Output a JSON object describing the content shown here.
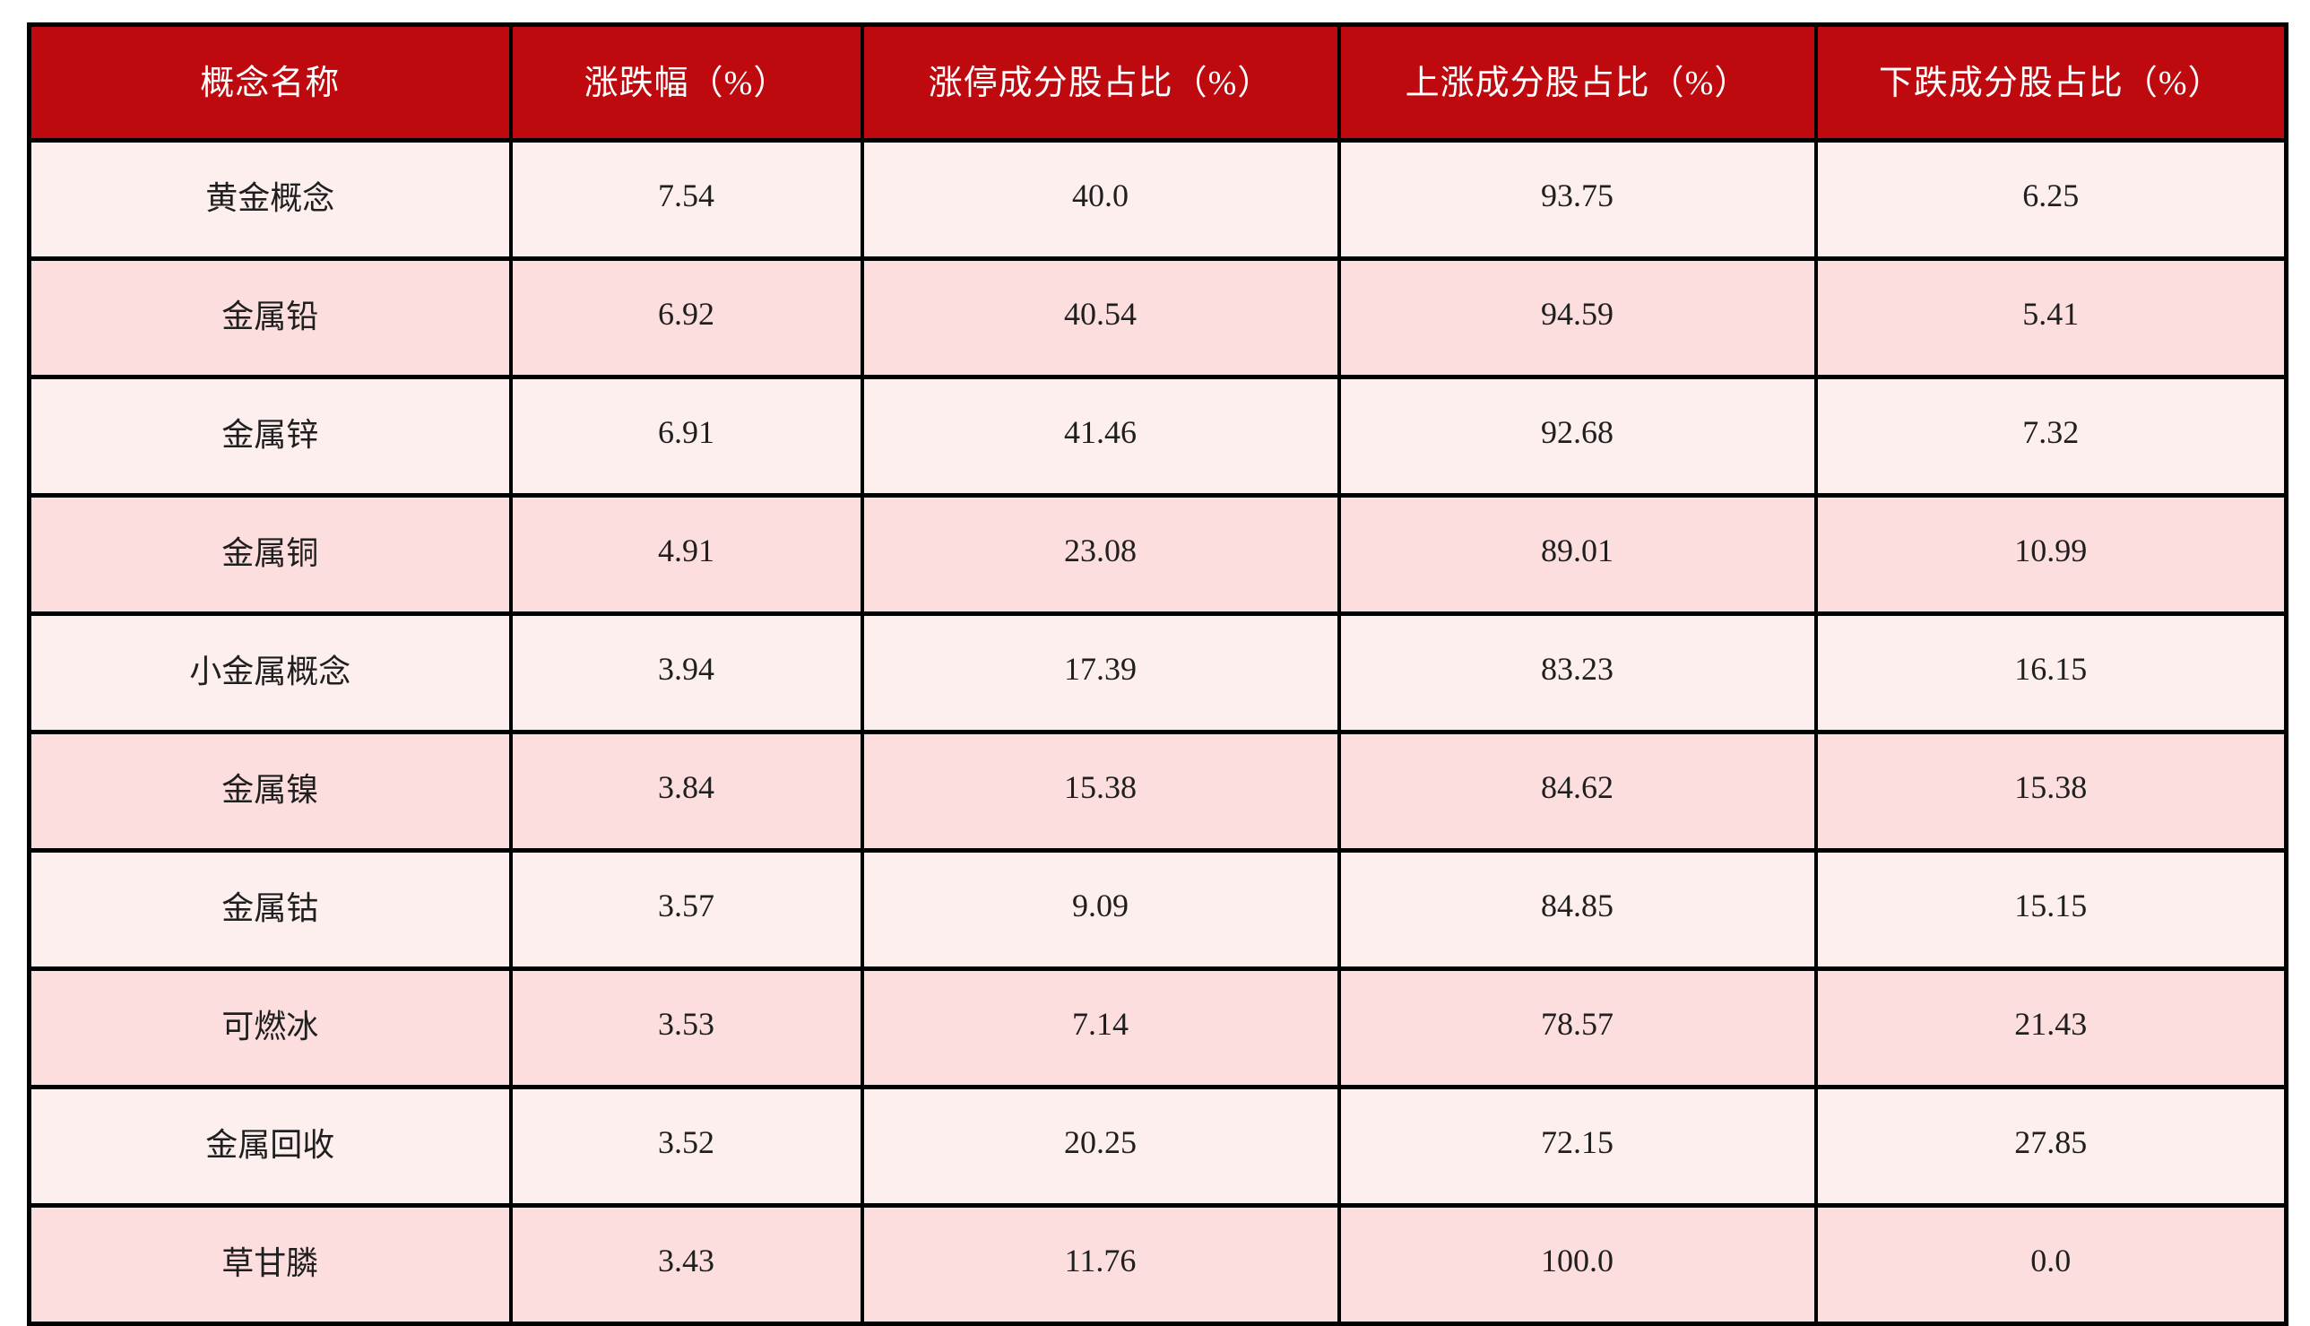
{
  "chart_data": {
    "type": "table",
    "columns": [
      "概念名称",
      "涨跌幅（%）",
      "涨停成分股占比（%）",
      "上涨成分股占比（%）",
      "下跌成分股占比（%）"
    ],
    "rows": [
      [
        "黄金概念",
        "7.54",
        "40.0",
        "93.75",
        "6.25"
      ],
      [
        "金属铅",
        "6.92",
        "40.54",
        "94.59",
        "5.41"
      ],
      [
        "金属锌",
        "6.91",
        "41.46",
        "92.68",
        "7.32"
      ],
      [
        "金属铜",
        "4.91",
        "23.08",
        "89.01",
        "10.99"
      ],
      [
        "小金属概念",
        "3.94",
        "17.39",
        "83.23",
        "16.15"
      ],
      [
        "金属镍",
        "3.84",
        "15.38",
        "84.62",
        "15.38"
      ],
      [
        "金属钴",
        "3.57",
        "9.09",
        "84.85",
        "15.15"
      ],
      [
        "可燃冰",
        "3.53",
        "7.14",
        "78.57",
        "21.43"
      ],
      [
        "金属回收",
        "3.52",
        "20.25",
        "72.15",
        "27.85"
      ],
      [
        "草甘膦",
        "3.43",
        "11.76",
        "100.0",
        "0.0"
      ]
    ],
    "layout": {
      "header_position": "top",
      "gridlines": "on",
      "row_striping": "alternating-pink"
    },
    "colors": {
      "header_background": "#be0a0f",
      "header_text": "#ffffff",
      "row_odd_background": "#fcefed",
      "row_even_background": "#fbdedd",
      "border": "#000000",
      "body_text": "#1f1f1f",
      "page_background": "#ffffff"
    }
  }
}
